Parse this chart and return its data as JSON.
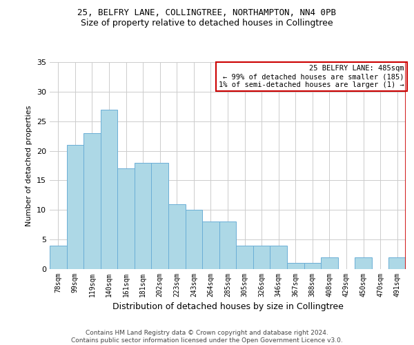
{
  "title_line1": "25, BELFRY LANE, COLLINGTREE, NORTHAMPTON, NN4 0PB",
  "title_line2": "Size of property relative to detached houses in Collingtree",
  "xlabel": "Distribution of detached houses by size in Collingtree",
  "ylabel": "Number of detached properties",
  "categories": [
    "78sqm",
    "99sqm",
    "119sqm",
    "140sqm",
    "161sqm",
    "181sqm",
    "202sqm",
    "223sqm",
    "243sqm",
    "264sqm",
    "285sqm",
    "305sqm",
    "326sqm",
    "346sqm",
    "367sqm",
    "388sqm",
    "408sqm",
    "429sqm",
    "450sqm",
    "470sqm",
    "491sqm"
  ],
  "values": [
    4,
    21,
    23,
    27,
    17,
    18,
    18,
    11,
    10,
    8,
    8,
    4,
    4,
    4,
    1,
    1,
    2,
    0,
    2,
    0,
    2
  ],
  "bar_color": "#add8e6",
  "bar_edge_color": "#6aaed6",
  "ylim": [
    0,
    35
  ],
  "yticks": [
    0,
    5,
    10,
    15,
    20,
    25,
    30,
    35
  ],
  "annotation_box_text": "25 BELFRY LANE: 485sqm\n← 99% of detached houses are smaller (185)\n1% of semi-detached houses are larger (1) →",
  "annotation_box_color": "#cc0000",
  "footer_line1": "Contains HM Land Registry data © Crown copyright and database right 2024.",
  "footer_line2": "Contains public sector information licensed under the Open Government Licence v3.0.",
  "background_color": "#ffffff",
  "grid_color": "#cccccc",
  "title1_fontsize": 9,
  "title2_fontsize": 9,
  "ylabel_fontsize": 8,
  "xlabel_fontsize": 9,
  "tick_fontsize": 7,
  "ytick_fontsize": 8,
  "footer_fontsize": 6.5,
  "annot_fontsize": 7.5
}
